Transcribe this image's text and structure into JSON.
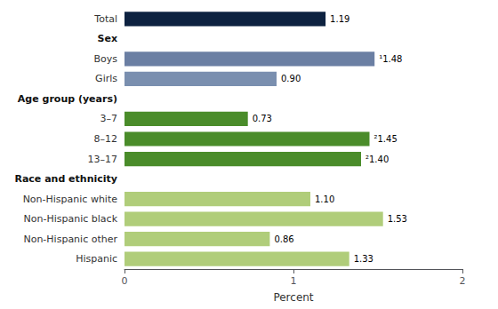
{
  "chart_data": {
    "type": "bar",
    "orientation": "horizontal",
    "categories": [
      "Total",
      "Sex",
      "Boys",
      "Girls",
      "Age group (years)",
      "3–7",
      "8–12",
      "13–17",
      "Race and ethnicity",
      "Non-Hispanic white",
      "Non-Hispanic black",
      "Non-Hispanic other",
      "Hispanic"
    ],
    "values": [
      1.19,
      null,
      1.48,
      0.9,
      null,
      0.73,
      1.45,
      1.4,
      null,
      1.1,
      1.53,
      0.86,
      1.33
    ],
    "value_labels": [
      "1.19",
      null,
      "¹1.48",
      "0.90",
      null,
      "0.73",
      "²1.45",
      "²1.40",
      null,
      "1.10",
      "1.53",
      "0.86",
      "1.33"
    ],
    "colors": [
      "#0d2240",
      null,
      "#6b7fa3",
      "#7a8faf",
      null,
      "#4a8c2a",
      "#4a8c2a",
      "#4a8c2a",
      null,
      "#b0cd7a",
      "#b0cd7a",
      "#b0cd7a",
      "#b0cd7a"
    ],
    "data_labels": true,
    "xlabel": "Percent",
    "xlim": [
      0,
      2
    ],
    "xticks": [
      0,
      1,
      2
    ],
    "grid": false
  }
}
